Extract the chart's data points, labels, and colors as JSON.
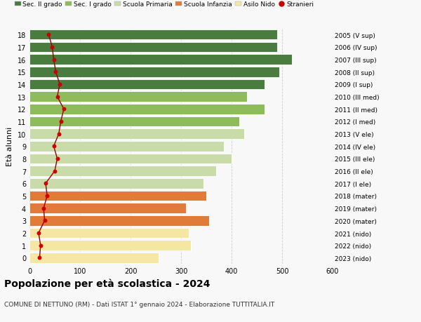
{
  "ages": [
    0,
    1,
    2,
    3,
    4,
    5,
    6,
    7,
    8,
    9,
    10,
    11,
    12,
    13,
    14,
    15,
    16,
    17,
    18
  ],
  "values": [
    255,
    320,
    315,
    355,
    310,
    350,
    345,
    370,
    400,
    385,
    425,
    415,
    465,
    430,
    465,
    495,
    520,
    490,
    490
  ],
  "stranieri": [
    20,
    22,
    18,
    30,
    28,
    35,
    32,
    50,
    55,
    48,
    58,
    62,
    68,
    55,
    60,
    52,
    48,
    45,
    38
  ],
  "right_labels": [
    "2023 (nido)",
    "2022 (nido)",
    "2021 (nido)",
    "2020 (mater)",
    "2019 (mater)",
    "2018 (mater)",
    "2017 (I ele)",
    "2016 (II ele)",
    "2015 (III ele)",
    "2014 (IV ele)",
    "2013 (V ele)",
    "2012 (I med)",
    "2011 (II med)",
    "2010 (III med)",
    "2009 (I sup)",
    "2008 (II sup)",
    "2007 (III sup)",
    "2006 (IV sup)",
    "2005 (V sup)"
  ],
  "bar_colors": [
    "#f5e6a3",
    "#f5e6a3",
    "#f5e6a3",
    "#e07b39",
    "#e07b39",
    "#e07b39",
    "#c8dba8",
    "#c8dba8",
    "#c8dba8",
    "#c8dba8",
    "#c8dba8",
    "#8fbc5a",
    "#8fbc5a",
    "#8fbc5a",
    "#4a7c3f",
    "#4a7c3f",
    "#4a7c3f",
    "#4a7c3f",
    "#4a7c3f"
  ],
  "legend_labels": [
    "Sec. II grado",
    "Sec. I grado",
    "Scuola Primaria",
    "Scuola Infanzia",
    "Asilo Nido",
    "Stranieri"
  ],
  "legend_colors": [
    "#4a7c3f",
    "#8fbc5a",
    "#c8dba8",
    "#e07b39",
    "#f5e6a3",
    "#aa0000"
  ],
  "title": "Popolazione per età scolastica - 2024",
  "subtitle": "COMUNE DI NETTUNO (RM) - Dati ISTAT 1° gennaio 2024 - Elaborazione TUTTITALIA.IT",
  "ylabel_left": "Età alunni",
  "xlim": [
    0,
    600
  ],
  "background_color": "#f8f8f8",
  "grid_color": "#cccccc",
  "stranieri_color": "#cc0000",
  "stranieri_line_color": "#990000"
}
